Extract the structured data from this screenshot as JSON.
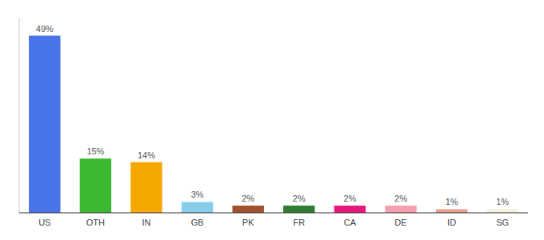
{
  "chart_data": {
    "type": "bar",
    "categories": [
      "US",
      "OTH",
      "IN",
      "GB",
      "PK",
      "FR",
      "CA",
      "DE",
      "ID",
      "SG"
    ],
    "values": [
      49,
      15,
      14,
      3,
      2,
      2,
      2,
      2,
      1,
      1
    ],
    "value_labels": [
      "49%",
      "15%",
      "14%",
      "3%",
      "2%",
      "2%",
      "2%",
      "2%",
      "1%",
      "1%"
    ],
    "colors": [
      "#4876e8",
      "#3cb832",
      "#f5a800",
      "#87ceeb",
      "#a0522d",
      "#2e7d32",
      "#e8187a",
      "#f4a0b0",
      "#e8a090",
      "#f5f0dc"
    ],
    "ylim": [
      0,
      54
    ],
    "data_labels": true,
    "tick_labels": "x",
    "grid": false
  }
}
